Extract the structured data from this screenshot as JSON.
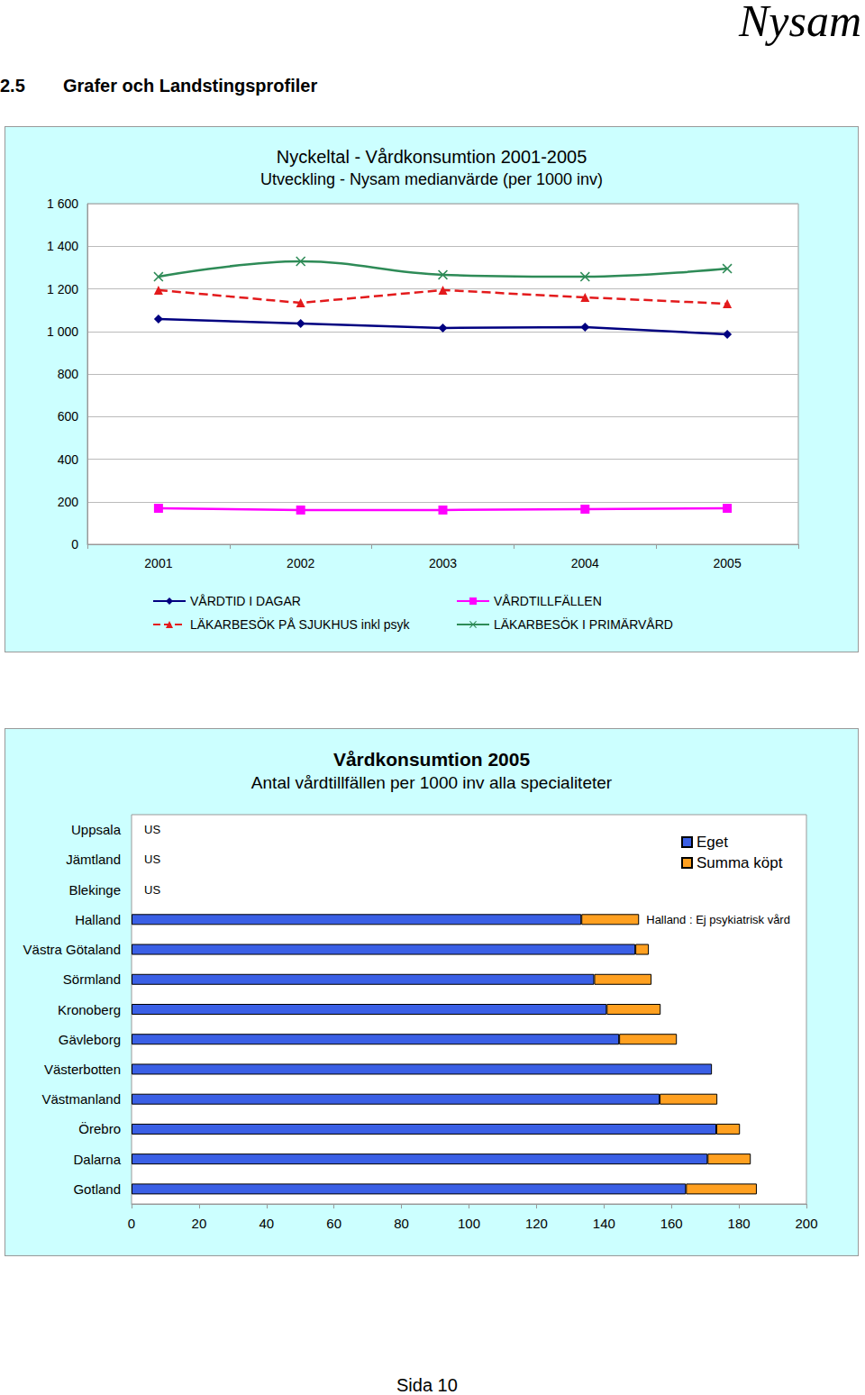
{
  "page": {
    "brand": "Nysam",
    "section": "2.5",
    "heading": "Grafer och Landstingsprofiler",
    "footer": "Sida 10"
  },
  "chart_data": [
    {
      "type": "line",
      "title": "Nyckeltal - Vårdkonsumtion 2001-2005",
      "subtitle": "Utveckling - Nysam medianvärde (per 1000 inv)",
      "categories": [
        "2001",
        "2002",
        "2003",
        "2004",
        "2005"
      ],
      "series": [
        {
          "name": "VÅRDTID I DAGAR",
          "color": "#000080",
          "marker": "diamond",
          "line_style": "solid",
          "values": [
            1058,
            1037,
            1016,
            1020,
            986
          ]
        },
        {
          "name": "LÄKARBESÖK PÅ SJUKHUS inkl psyk",
          "color": "#e31a1c",
          "marker": "triangle",
          "line_style": "dashed",
          "values": [
            1194,
            1134,
            1194,
            1160,
            1130
          ]
        },
        {
          "name": "VÅRDTILLFÄLLEN",
          "color": "#ff00ff",
          "marker": "square",
          "line_style": "solid",
          "values": [
            169,
            161,
            161,
            165,
            169
          ]
        },
        {
          "name": "LÄKARBESÖK I PRIMÄRVÅRD",
          "color": "#2e8b57",
          "marker": "x",
          "line_style": "solid",
          "values": [
            1257,
            1329,
            1266,
            1257,
            1295
          ]
        }
      ],
      "ylim": [
        0,
        1600
      ],
      "yticks": [
        0,
        200,
        400,
        600,
        800,
        {
          "value": 1000,
          "label": "1 000"
        },
        {
          "value": 1200,
          "label": "1 200"
        },
        {
          "value": 1400,
          "label": "1 400"
        },
        {
          "value": 1600,
          "label": "1 600"
        }
      ],
      "grid": true,
      "legend": "bottom"
    },
    {
      "type": "bar",
      "orientation": "horizontal",
      "stacked": true,
      "title": "Vårdkonsumtion 2005",
      "subtitle": "Antal vårdtillfällen per 1000 inv alla specialiteter",
      "categories": [
        "Uppsala",
        "Jämtland",
        "Blekinge",
        "Halland",
        "Västra Götaland",
        "Sörmland",
        "Kronoberg",
        "Gävleborg",
        "Västerbotten",
        "Västmanland",
        "Örebro",
        "Dalarna",
        "Gotland"
      ],
      "series": [
        {
          "name": "Eget",
          "color": "#3a5fe5",
          "values": [
            null,
            null,
            null,
            133.3,
            149.3,
            137.1,
            140.8,
            144.5,
            172.0,
            156.5,
            173.3,
            170.7,
            164.3
          ]
        },
        {
          "name": "Summa köpt",
          "color": "#ffa020",
          "values": [
            null,
            null,
            null,
            17.1,
            4.0,
            17.0,
            16.0,
            17.1,
            null,
            17.1,
            7.0,
            12.8,
            21.0
          ]
        }
      ],
      "annotations": [
        {
          "category": "Uppsala",
          "text": "US"
        },
        {
          "category": "Jämtland",
          "text": "US"
        },
        {
          "category": "Blekinge",
          "text": "US"
        },
        {
          "category": "Halland",
          "text": "Halland : Ej psykiatrisk vård"
        }
      ],
      "xlim": [
        0,
        200
      ],
      "xticks": [
        0,
        20,
        40,
        60,
        80,
        100,
        120,
        140,
        160,
        180,
        200
      ],
      "grid": false,
      "legend": "top-right"
    }
  ]
}
